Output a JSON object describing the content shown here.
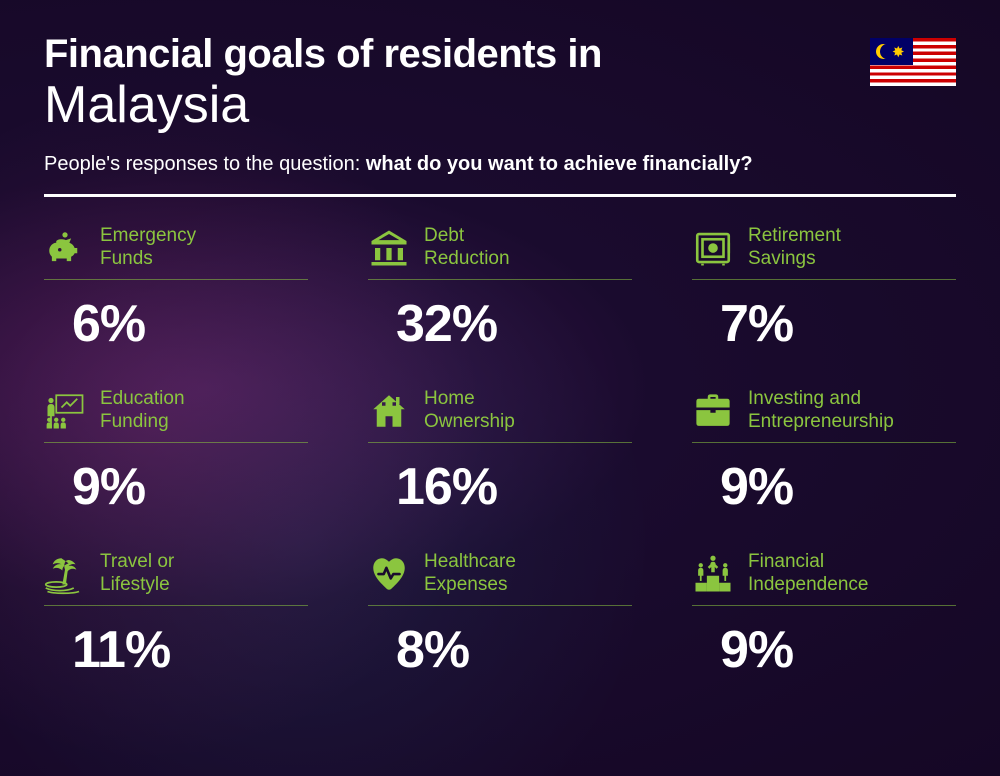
{
  "header": {
    "title_prefix": "Financial goals of residents in",
    "country": "Malaysia",
    "subtitle_lead": "People's responses to the question: ",
    "subtitle_bold": "what do you want to achieve financially?"
  },
  "styling": {
    "accent_color": "#8bc53f",
    "text_color": "#ffffff",
    "background_gradient": [
      "#3d1850",
      "#1a0b2e",
      "#150725"
    ],
    "title_prefix_fontsize": 40,
    "title_prefix_weight": 800,
    "country_fontsize": 52,
    "country_weight": 300,
    "subtitle_fontsize": 20,
    "value_fontsize": 52,
    "value_weight": 800,
    "label_fontsize": 19,
    "label_color": "#8bc53f",
    "item_divider_color": "rgba(139,197,63,0.55)",
    "main_divider_color": "#ffffff",
    "main_divider_width": 3,
    "grid_columns": 3,
    "grid_column_gap": 60,
    "grid_row_gap": 34
  },
  "flag": {
    "country": "Malaysia",
    "stripe_colors": [
      "#cc0001",
      "#ffffff"
    ],
    "canton_color": "#010066",
    "emblem_color": "#ffcc00"
  },
  "goals": [
    {
      "icon": "piggy-bank-icon",
      "label": "Emergency\nFunds",
      "value": "6%"
    },
    {
      "icon": "bank-icon",
      "label": "Debt\nReduction",
      "value": "32%"
    },
    {
      "icon": "safe-icon",
      "label": "Retirement\nSavings",
      "value": "7%"
    },
    {
      "icon": "presentation-icon",
      "label": "Education\nFunding",
      "value": "9%"
    },
    {
      "icon": "house-icon",
      "label": "Home\nOwnership",
      "value": "16%"
    },
    {
      "icon": "briefcase-icon",
      "label": "Investing and\nEntrepreneurship",
      "value": "9%"
    },
    {
      "icon": "palm-tree-icon",
      "label": "Travel or\nLifestyle",
      "value": "11%"
    },
    {
      "icon": "heart-pulse-icon",
      "label": "Healthcare\nExpenses",
      "value": "8%"
    },
    {
      "icon": "podium-icon",
      "label": "Financial\nIndependence",
      "value": "9%"
    }
  ]
}
